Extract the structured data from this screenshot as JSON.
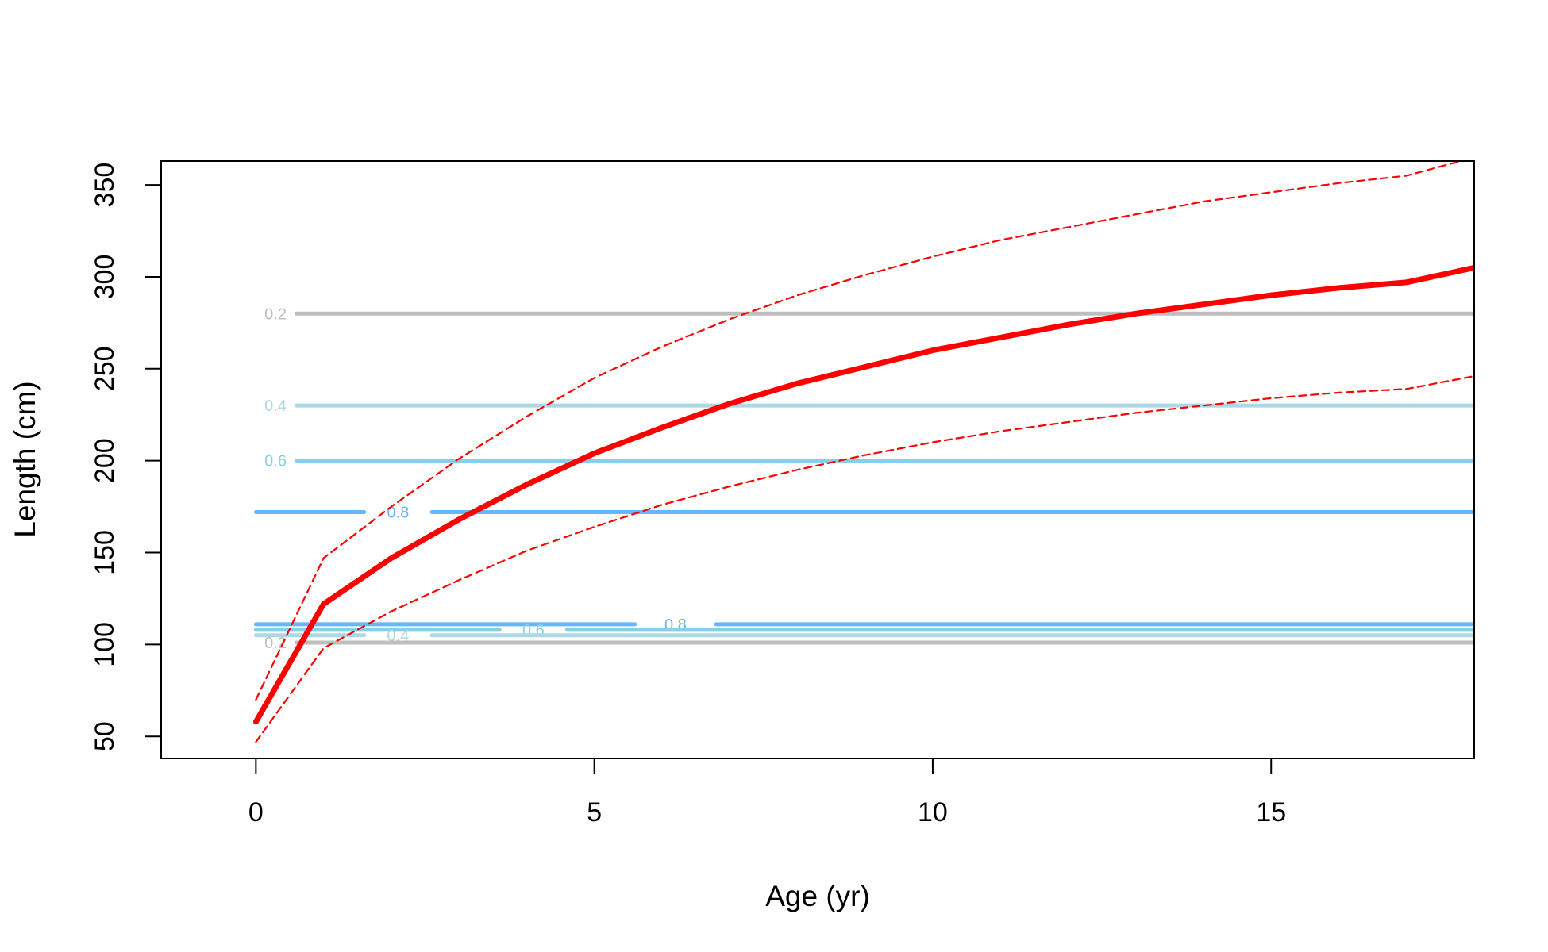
{
  "chart_data": {
    "type": "line",
    "title": "",
    "xlabel": "Age (yr)",
    "ylabel": "Length (cm)",
    "xlim": [
      -1.4,
      18.0
    ],
    "ylim": [
      38,
      363
    ],
    "x_ticks": [
      0,
      5,
      10,
      15
    ],
    "y_ticks": [
      50,
      100,
      150,
      200,
      250,
      300,
      350
    ],
    "grid": false,
    "legend": "none",
    "colors": {
      "mean": "#ff0000",
      "interval": "#ff0000",
      "axis": "#000000",
      "level_0_2": "#bebebe",
      "level_0_4": "#add8e6",
      "level_0_6": "#87ceeb",
      "level_0_8": "#63b8ff"
    },
    "series": [
      {
        "role": "mean",
        "style": "solid",
        "x": [
          0,
          1,
          2,
          3,
          4,
          5,
          6,
          7,
          8,
          9,
          10,
          11,
          12,
          13,
          14,
          15,
          16,
          17,
          18
        ],
        "values": [
          58,
          122,
          147,
          168,
          187,
          204,
          218,
          231,
          242,
          251,
          260,
          267,
          274,
          280,
          285,
          290,
          294,
          297,
          305
        ]
      },
      {
        "role": "upper-interval",
        "style": "dashed",
        "x": [
          0,
          1,
          2,
          3,
          4,
          5,
          6,
          7,
          8,
          9,
          10,
          11,
          12,
          13,
          14,
          15,
          16,
          17,
          18
        ],
        "values": [
          70,
          147,
          175,
          201,
          224,
          245,
          262,
          277,
          290,
          301,
          311,
          320,
          327,
          334,
          341,
          346,
          351,
          355,
          365
        ]
      },
      {
        "role": "lower-interval",
        "style": "dashed",
        "x": [
          0,
          1,
          2,
          3,
          4,
          5,
          6,
          7,
          8,
          9,
          10,
          11,
          12,
          13,
          14,
          15,
          16,
          17,
          18
        ],
        "values": [
          47,
          98,
          118,
          135,
          151,
          164,
          176,
          186,
          195,
          203,
          210,
          216,
          221,
          226,
          230,
          234,
          237,
          239,
          246
        ]
      }
    ],
    "contours": [
      {
        "level": "0.2",
        "color_key": "level_0_2",
        "y": 280,
        "x_start": 0.6,
        "x_end": 18,
        "label_x": 0.29,
        "label": "0.2"
      },
      {
        "level": "0.4",
        "color_key": "level_0_4",
        "y": 230,
        "x_start": 0.6,
        "x_end": 18,
        "label_x": 0.29,
        "label": "0.4"
      },
      {
        "level": "0.6",
        "color_key": "level_0_6",
        "y": 200,
        "x_start": 0.6,
        "x_end": 18,
        "label_x": 0.29,
        "label": "0.6"
      },
      {
        "level": "0.8",
        "color_key": "level_0_8",
        "y": 172,
        "x_start": 0,
        "x_end": 18,
        "gap": [
          1.6,
          2.6
        ],
        "label_x": 2.1,
        "label": "0.8"
      },
      {
        "level": "0.8",
        "color_key": "level_0_8",
        "y": 111,
        "x_start": 0,
        "x_end": 18,
        "gap": [
          5.6,
          6.8
        ],
        "label_x": 6.2,
        "label": "0.8"
      },
      {
        "level": "0.6",
        "color_key": "level_0_6",
        "y": 108,
        "x_start": 0,
        "x_end": 18,
        "gap": [
          3.6,
          4.6
        ],
        "label_x": 4.1,
        "label": "0.6"
      },
      {
        "level": "0.4",
        "color_key": "level_0_4",
        "y": 105,
        "x_start": 0,
        "x_end": 18,
        "gap": [
          1.6,
          2.6
        ],
        "label_x": 2.1,
        "label": "0.4"
      },
      {
        "level": "0.2",
        "color_key": "level_0_2",
        "y": 101,
        "x_start": 0.6,
        "x_end": 18,
        "label_x": 0.29,
        "label": "0.2"
      }
    ]
  }
}
